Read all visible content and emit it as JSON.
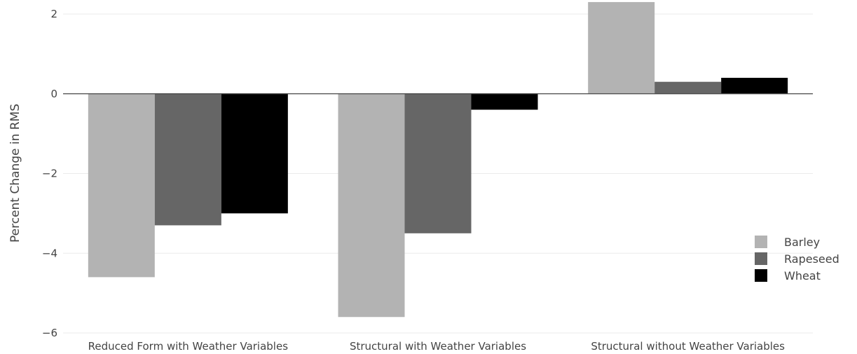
{
  "chart_data": {
    "type": "bar",
    "title": "",
    "xlabel": "",
    "ylabel": "Percent Change in RMS",
    "categories": [
      "Reduced Form with Weather Variables",
      "Structural with Weather Variables",
      "Structural without Weather Variables"
    ],
    "series": [
      {
        "name": "Barley",
        "color": "#b3b3b3",
        "values": [
          -4.6,
          -5.6,
          2.3
        ]
      },
      {
        "name": "Rapeseed",
        "color": "#666666",
        "values": [
          -3.3,
          -3.5,
          0.3
        ]
      },
      {
        "name": "Wheat",
        "color": "#000000",
        "values": [
          -3.0,
          -0.4,
          0.4
        ]
      }
    ],
    "ylim": [
      -6,
      2.3
    ],
    "yticks": [
      {
        "value": -6,
        "label": "−6"
      },
      {
        "value": -4,
        "label": "−4"
      },
      {
        "value": -2,
        "label": "−2"
      },
      {
        "value": 0,
        "label": "0"
      },
      {
        "value": 2,
        "label": "2"
      }
    ],
    "grid": true,
    "legend_position": "right"
  }
}
